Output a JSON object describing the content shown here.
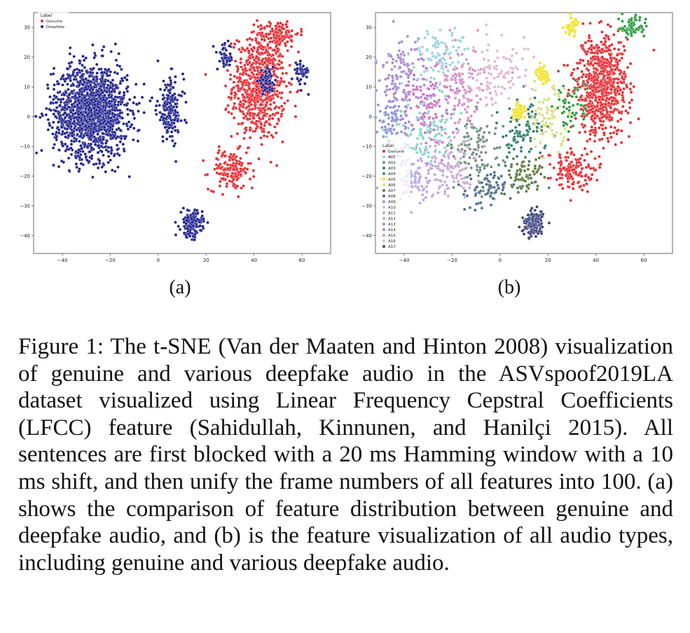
{
  "chart_data": [
    {
      "type": "scatter",
      "title": "",
      "xlabel": "",
      "ylabel": "",
      "xlim": [
        -52,
        72
      ],
      "ylim": [
        -46,
        35
      ],
      "x_ticks": [
        -40,
        -20,
        0,
        20,
        40,
        60
      ],
      "y_ticks": [
        30,
        20,
        10,
        0,
        -10,
        -20,
        -30,
        -40
      ],
      "x_tick_labels": [
        "−40",
        "−20",
        "0",
        "20",
        "40",
        "60"
      ],
      "y_tick_labels": [
        "30",
        "20",
        "10",
        "0",
        "−10",
        "−20",
        "−30",
        "−40"
      ],
      "grid": false,
      "legend": {
        "title": "Label",
        "placement": "top-left",
        "entries": [
          "Genuine",
          "Deepfake"
        ]
      },
      "series": [
        {
          "name": "Genuine",
          "color": "#e8282e",
          "clusters": [
            {
              "cx": 42,
              "cy": 10,
              "sx": 10,
              "sy": 16,
              "n": 700
            },
            {
              "cx": 30,
              "cy": -18,
              "sx": 8,
              "sy": 6,
              "n": 140
            },
            {
              "cx": 50,
              "cy": 28,
              "sx": 8,
              "sy": 4,
              "n": 120
            }
          ]
        },
        {
          "name": "Deepfake",
          "color": "#1c1f8c",
          "clusters": [
            {
              "cx": -28,
              "cy": 2,
              "sx": 14,
              "sy": 14,
              "n": 1500
            },
            {
              "cx": 14,
              "cy": -36,
              "sx": 4,
              "sy": 4,
              "n": 160
            },
            {
              "cx": 5,
              "cy": 2,
              "sx": 5,
              "sy": 10,
              "n": 180
            },
            {
              "cx": 45,
              "cy": 12,
              "sx": 3,
              "sy": 3,
              "n": 70
            },
            {
              "cx": 60,
              "cy": 15,
              "sx": 3,
              "sy": 4,
              "n": 45
            },
            {
              "cx": 28,
              "cy": 20,
              "sx": 3,
              "sy": 4,
              "n": 45
            }
          ]
        }
      ]
    },
    {
      "type": "scatter",
      "title": "",
      "xlabel": "",
      "ylabel": "",
      "xlim": [
        -52,
        72
      ],
      "ylim": [
        -46,
        35
      ],
      "x_ticks": [
        -40,
        -20,
        0,
        20,
        40,
        60
      ],
      "y_ticks": [
        30,
        20,
        10,
        0,
        -10,
        -20,
        -30,
        -40
      ],
      "x_tick_labels": [
        "−40",
        "−20",
        "0",
        "20",
        "40",
        "60"
      ],
      "y_tick_labels": [
        "30",
        "20",
        "10",
        "0",
        "−10",
        "−20",
        "−30",
        "−40"
      ],
      "grid": false,
      "legend": {
        "title": "Label",
        "placement": "center-left",
        "entries": [
          "Genuine",
          "A01",
          "A02",
          "A03",
          "A04",
          "A05",
          "A06",
          "A07",
          "A08",
          "A09",
          "A10",
          "A11",
          "A12",
          "A13",
          "A14",
          "A15",
          "A16",
          "A17"
        ]
      },
      "series": [
        {
          "name": "Genuine",
          "color": "#e8282e",
          "clusters": [
            {
              "cx": 42,
              "cy": 10,
              "sx": 10,
              "sy": 16,
              "n": 700
            },
            {
              "cx": 30,
              "cy": -18,
              "sx": 8,
              "sy": 6,
              "n": 140
            }
          ]
        },
        {
          "name": "A01",
          "color": "#7fd8c8",
          "clusters": [
            {
              "cx": -30,
              "cy": -5,
              "sx": 14,
              "sy": 12,
              "n": 130
            }
          ]
        },
        {
          "name": "A02",
          "color": "#6f8f7a",
          "clusters": [
            {
              "cx": -10,
              "cy": -12,
              "sx": 10,
              "sy": 12,
              "n": 110
            }
          ]
        },
        {
          "name": "A03",
          "color": "#2e7d6b",
          "clusters": [
            {
              "cx": 10,
              "cy": -5,
              "sx": 8,
              "sy": 10,
              "n": 100
            }
          ]
        },
        {
          "name": "A04",
          "color": "#2a9a3c",
          "clusters": [
            {
              "cx": 55,
              "cy": 30,
              "sx": 6,
              "sy": 3,
              "n": 70
            },
            {
              "cx": 30,
              "cy": 5,
              "sx": 6,
              "sy": 8,
              "n": 50
            }
          ]
        },
        {
          "name": "A05",
          "color": "#f1e21b",
          "clusters": [
            {
              "cx": 8,
              "cy": 2,
              "sx": 2.5,
              "sy": 2.5,
              "n": 60
            },
            {
              "cx": 18,
              "cy": 14,
              "sx": 2.5,
              "sy": 3,
              "n": 50
            },
            {
              "cx": 30,
              "cy": 30,
              "sx": 3,
              "sy": 3,
              "n": 40
            }
          ]
        },
        {
          "name": "A06",
          "color": "#d6e07a",
          "clusters": [
            {
              "cx": 20,
              "cy": 0,
              "sx": 8,
              "sy": 10,
              "n": 70
            }
          ]
        },
        {
          "name": "A07",
          "color": "#5a7a3a",
          "clusters": [
            {
              "cx": 10,
              "cy": -20,
              "sx": 8,
              "sy": 6,
              "n": 70
            }
          ]
        },
        {
          "name": "A08",
          "color": "#4a6a8a",
          "clusters": [
            {
              "cx": -5,
              "cy": -25,
              "sx": 10,
              "sy": 6,
              "n": 70
            }
          ]
        },
        {
          "name": "A09",
          "color": "#a88bd6",
          "clusters": [
            {
              "cx": -40,
              "cy": 15,
              "sx": 8,
              "sy": 10,
              "n": 100
            }
          ]
        },
        {
          "name": "A10",
          "color": "#9bd3e6",
          "clusters": [
            {
              "cx": -25,
              "cy": 20,
              "sx": 10,
              "sy": 8,
              "n": 100
            }
          ]
        },
        {
          "name": "A11",
          "color": "#b6a4e6",
          "clusters": [
            {
              "cx": -35,
              "cy": -20,
              "sx": 10,
              "sy": 8,
              "n": 100
            }
          ]
        },
        {
          "name": "A12",
          "color": "#c9a6d9",
          "clusters": [
            {
              "cx": -20,
              "cy": -15,
              "sx": 10,
              "sy": 10,
              "n": 100
            }
          ]
        },
        {
          "name": "A13",
          "color": "#8a8fd8",
          "clusters": [
            {
              "cx": -45,
              "cy": 0,
              "sx": 6,
              "sy": 12,
              "n": 90
            }
          ]
        },
        {
          "name": "A14",
          "color": "#cc6fc9",
          "clusters": [
            {
              "cx": -30,
              "cy": 5,
              "sx": 12,
              "sy": 12,
              "n": 120
            }
          ]
        },
        {
          "name": "A15",
          "color": "#d88fc4",
          "clusters": [
            {
              "cx": -15,
              "cy": 10,
              "sx": 10,
              "sy": 12,
              "n": 110
            }
          ]
        },
        {
          "name": "A16",
          "color": "#e3b5cf",
          "clusters": [
            {
              "cx": 0,
              "cy": 15,
              "sx": 10,
              "sy": 10,
              "n": 90
            }
          ]
        },
        {
          "name": "A17",
          "color": "#3a3f7a",
          "clusters": [
            {
              "cx": 14,
              "cy": -36,
              "sx": 4,
              "sy": 4,
              "n": 160
            }
          ]
        }
      ]
    }
  ],
  "sublabels": {
    "a": "(a)",
    "b": "(b)"
  },
  "caption": "Figure 1: The t-SNE (Van der Maaten and Hinton 2008) visualization of genuine and various deepfake audio in the ASVspoof2019LA dataset visualized using Linear Frequency Cepstral Coefficients (LFCC) feature (Sahidullah, Kinnunen, and Hanilçi 2015). All sentences are first blocked with a 20 ms Hamming window with a 10 ms shift, and then unify the frame numbers of all features into 100. (a) shows the comparison of feature distribution between genuine and deepfake audio, and (b) is the feature visualization of all audio types, including genuine and various deepfake audio."
}
